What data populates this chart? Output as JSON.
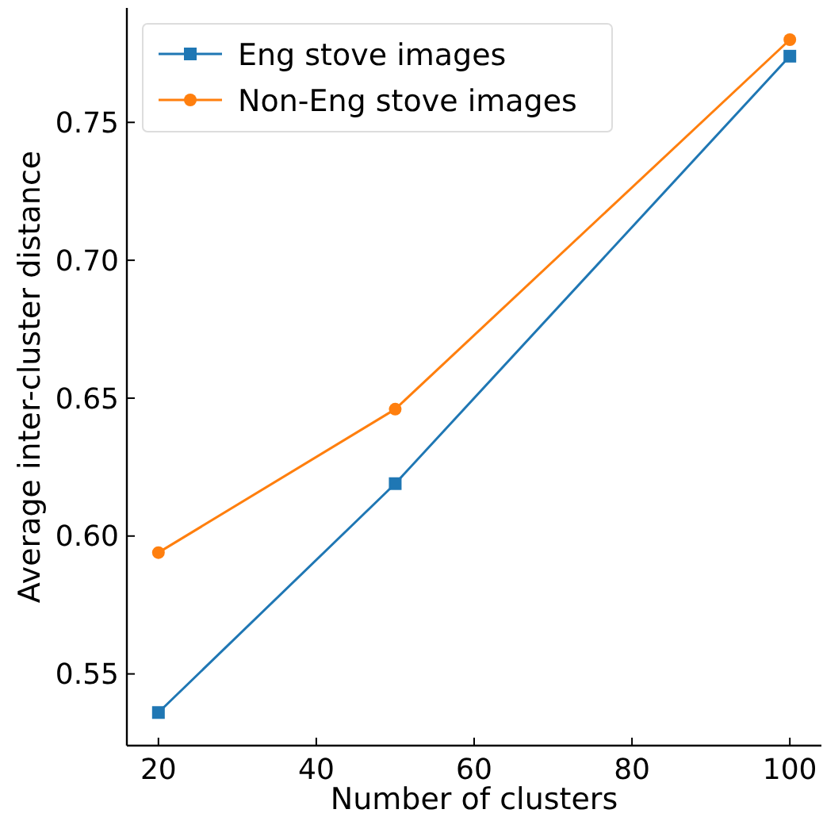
{
  "chart_data": {
    "type": "line",
    "xlabel": "Number of clusters",
    "ylabel": "Average inter-cluster distance",
    "x": [
      20,
      50,
      100
    ],
    "series": [
      {
        "name": "Eng stove images",
        "color": "#1f77b4",
        "marker": "square",
        "values": [
          0.536,
          0.619,
          0.774
        ]
      },
      {
        "name": "Non-Eng stove images",
        "color": "#ff7f0e",
        "marker": "circle",
        "values": [
          0.594,
          0.646,
          0.78
        ]
      }
    ],
    "xlim": [
      16,
      104
    ],
    "xticks": [
      20,
      40,
      60,
      80,
      100
    ],
    "ylim": [
      0.524,
      0.7915
    ],
    "yticks": [
      {
        "value": 0.55,
        "label": "0.55"
      },
      {
        "value": 0.6,
        "label": "0.60"
      },
      {
        "value": 0.65,
        "label": "0.65"
      },
      {
        "value": 0.7,
        "label": "0.70"
      },
      {
        "value": 0.75,
        "label": "0.75"
      }
    ],
    "grid": false,
    "legend": "top left",
    "line_style": "solid"
  }
}
